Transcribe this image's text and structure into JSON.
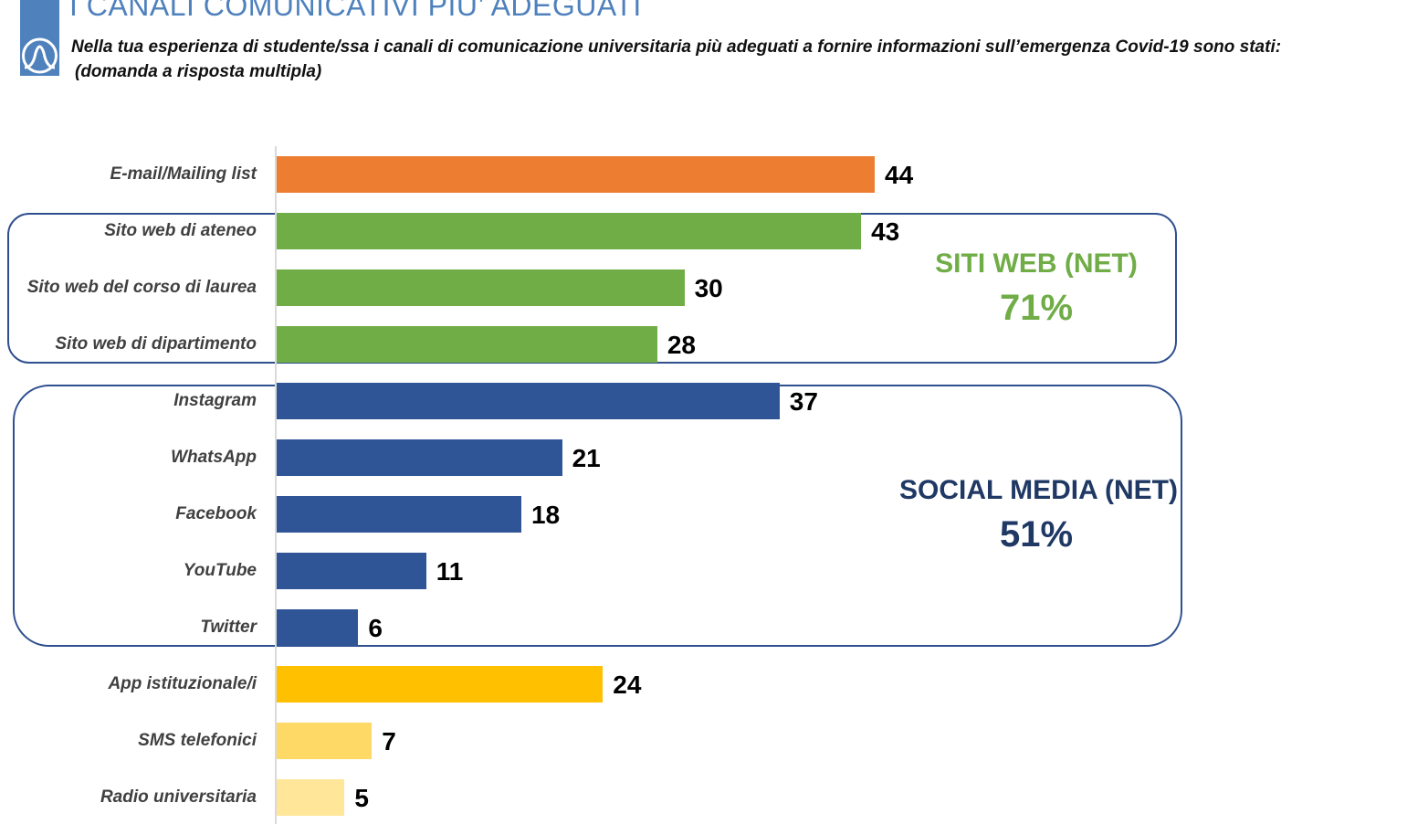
{
  "header": {
    "title": "I CANALI COMUNICATIVI PIU’ ADEGUATI",
    "question": "Nella tua esperienza di studente/ssa i canali di comunicazione universitaria più adeguati a fornire informazioni sull’emergenza Covid-19 sono stati:",
    "note": "(domanda a risposta multipla)",
    "logo_icon": "wave-circle-logo"
  },
  "chart_data": {
    "type": "bar",
    "orientation": "horizontal",
    "categories": [
      "E-mail/Mailing list",
      "Sito web di ateneo",
      "Sito web del corso di laurea",
      "Sito web di dipartimento",
      "Instagram",
      "WhatsApp",
      "Facebook",
      "YouTube",
      "Twitter",
      "App istituzionale/i",
      "SMS telefonici",
      "Radio universitaria"
    ],
    "values": [
      44,
      43,
      30,
      28,
      37,
      21,
      18,
      11,
      6,
      24,
      7,
      5
    ],
    "colors": [
      "#ed7d31",
      "#70ad47",
      "#70ad47",
      "#70ad47",
      "#2f5597",
      "#2f5597",
      "#2f5597",
      "#2f5597",
      "#2f5597",
      "#ffc000",
      "#ffd966",
      "#ffe699"
    ],
    "xlim": [
      0,
      44
    ],
    "grid": false,
    "groups": [
      {
        "label": "SITI WEB (NET)",
        "value": "71%",
        "color": "#70ad47"
      },
      {
        "label": "SOCIAL MEDIA (NET)",
        "value": "51%",
        "color": "#1f3864"
      }
    ]
  }
}
